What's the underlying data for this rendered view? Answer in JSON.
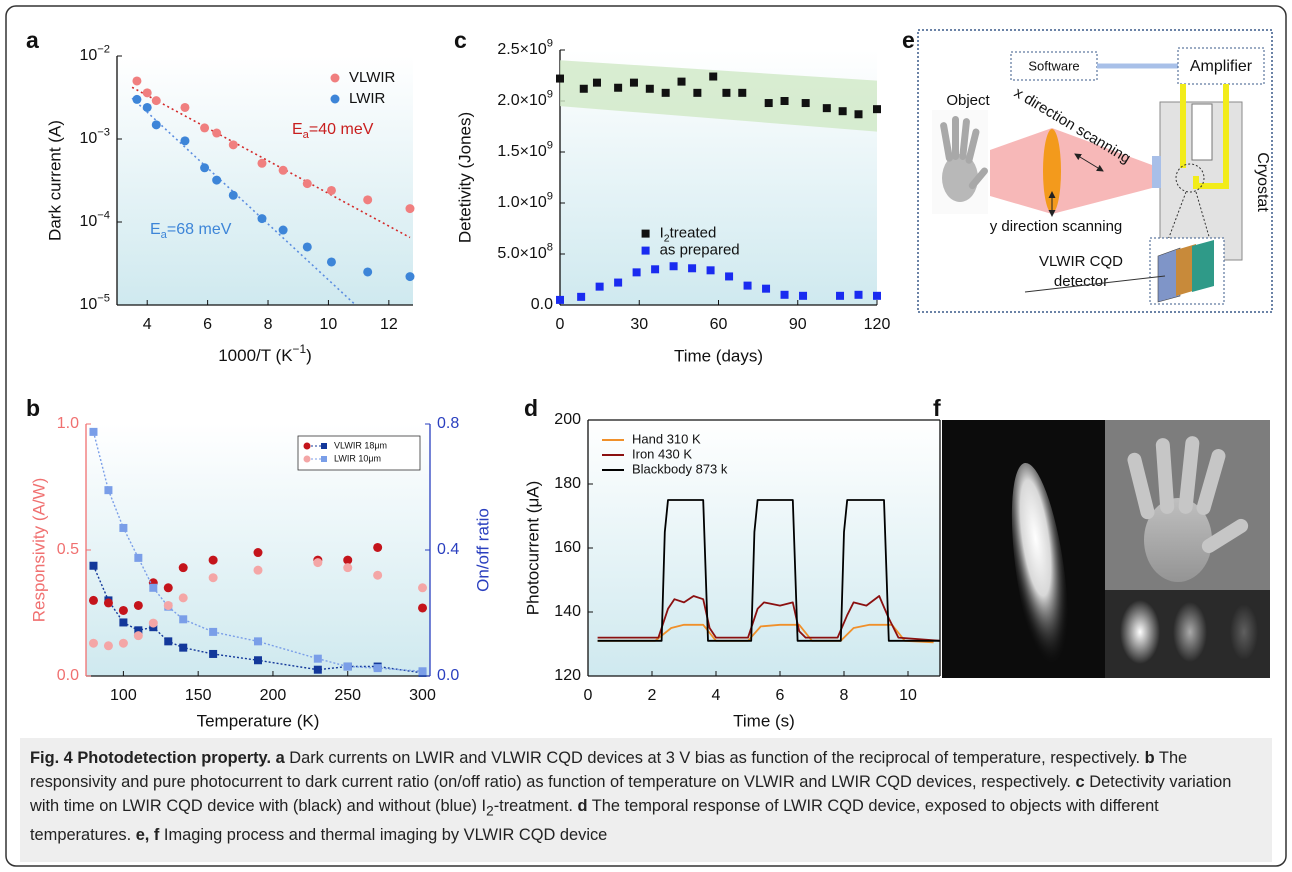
{
  "chart_data": [
    {
      "type": "scatter",
      "panel": "a",
      "yscale": "log",
      "legend": "upper right",
      "xlabel": [
        {
          "text": "1000/T  (K"
        },
        {
          "sup": "−1"
        },
        {
          "text": ")"
        }
      ],
      "ylabel": "Dark current  (A)",
      "xlim": [
        3,
        12.8
      ],
      "xticks": [
        4,
        6,
        8,
        10,
        12
      ],
      "ylim": [
        1e-05,
        0.01
      ],
      "yticks": [
        {
          "value": 1e-05,
          "label": [
            {
              "text": "10"
            },
            {
              "sup": "−5"
            }
          ]
        },
        {
          "value": 0.0001,
          "label": [
            {
              "text": "10"
            },
            {
              "sup": "−4"
            }
          ]
        },
        {
          "value": 0.001,
          "label": [
            {
              "text": "10"
            },
            {
              "sup": "−3"
            }
          ]
        },
        {
          "value": 0.01,
          "label": [
            {
              "text": "10"
            },
            {
              "sup": "−2"
            }
          ]
        }
      ],
      "x": [
        3.66,
        4.0,
        4.3,
        5.25,
        5.9,
        6.3,
        6.85,
        7.8,
        8.5,
        9.3,
        10.1,
        11.3,
        12.7
      ],
      "series": [
        {
          "name": "VLWIR",
          "color": "#f07f7f",
          "marker": "circle",
          "values": [
            0.005,
            0.0036,
            0.0029,
            0.0024,
            0.00136,
            0.00118,
            0.00085,
            0.00051,
            0.00042,
            0.00029,
            0.00024,
            0.000185,
            0.000145
          ],
          "fit": {
            "color": "#d42a2a",
            "x": [
              3.5,
              12.7
            ],
            "values": [
              0.0042,
              6.5e-05
            ]
          }
        },
        {
          "name": "LWIR",
          "color": "#3d85d8",
          "marker": "circle",
          "values": [
            0.003,
            0.0024,
            0.00148,
            0.00095,
            0.00045,
            0.00032,
            0.00021,
            0.00011,
            8e-05,
            5e-05,
            3.3e-05,
            2.5e-05,
            2.2e-05
          ],
          "fit": {
            "color": "#5b8de0",
            "x": [
              3.5,
              10.9
            ],
            "values": [
              0.0031,
              1e-05
            ]
          }
        }
      ],
      "annotations": [
        {
          "color": "#c81e1e",
          "text": [
            {
              "text": "E"
            },
            {
              "sub": "a"
            },
            {
              "text": "=40 meV"
            }
          ]
        },
        {
          "color": "#3d85d8",
          "text": [
            {
              "text": "E"
            },
            {
              "sub": "a"
            },
            {
              "text": "=68 meV"
            }
          ]
        }
      ]
    },
    {
      "type": "scatter",
      "panel": "b",
      "legend": "upper right",
      "xlabel": "Temperature (K)",
      "ylabel": "Responsivity (A/W)",
      "y2label": "On/off ratio",
      "y_color": "#f07070",
      "y2_color": "#2a3fbf",
      "xlim": [
        75,
        305
      ],
      "xticks": [
        100,
        150,
        200,
        250,
        300
      ],
      "ylim": [
        0,
        1.0
      ],
      "yticks": [
        {
          "value": 0,
          "label": "0.0"
        },
        0.5,
        {
          "value": 1,
          "label": "1.0"
        }
      ],
      "y2lim": [
        0,
        0.8
      ],
      "y2ticks": [
        {
          "value": 0,
          "label": "0.0"
        },
        0.4,
        0.8
      ],
      "x": [
        80,
        90,
        100,
        110,
        120,
        130,
        140,
        160,
        190,
        230,
        250,
        270,
        300
      ],
      "series": [
        {
          "name": "VLWIR 18μm",
          "color": "#c4141b",
          "marker": "circle",
          "values": [
            0.3,
            0.29,
            0.26,
            0.28,
            0.37,
            0.35,
            0.43,
            0.46,
            0.49,
            0.46,
            0.46,
            0.51,
            0.27
          ],
          "y2_color": "#13389a",
          "y2_values": [
            0.35,
            0.24,
            0.17,
            0.145,
            0.155,
            0.11,
            0.09,
            0.07,
            0.05,
            0.02,
            0.03,
            0.03,
            0.01
          ]
        },
        {
          "name": "LWIR 10μm",
          "color": "#f4a6a6",
          "marker": "circle",
          "values": [
            0.13,
            0.12,
            0.13,
            0.16,
            0.21,
            0.28,
            0.31,
            0.39,
            0.42,
            0.45,
            0.43,
            0.4,
            0.35
          ],
          "y2_color": "#7a9ee8",
          "y2_values": [
            0.775,
            0.59,
            0.47,
            0.375,
            0.28,
            0.22,
            0.18,
            0.14,
            0.11,
            0.055,
            0.03,
            0.025,
            0.015
          ]
        }
      ]
    },
    {
      "type": "scatter",
      "panel": "c",
      "legend": "center",
      "xlabel": "Time (days)",
      "ylabel": "Detetivity (Jones)",
      "xlim": [
        0,
        120
      ],
      "xticks": [
        0,
        30,
        60,
        90,
        120
      ],
      "ylim": [
        0,
        2500000000
      ],
      "yticks": [
        {
          "value": 0,
          "label": "0.0"
        },
        {
          "value": 500000000,
          "label": [
            {
              "text": "5.0×10"
            },
            {
              "sup": "8"
            }
          ]
        },
        {
          "value": 1000000000,
          "label": [
            {
              "text": "1.0×10"
            },
            {
              "sup": "9"
            }
          ]
        },
        {
          "value": 1500000000,
          "label": [
            {
              "text": "1.5×10"
            },
            {
              "sup": "9"
            }
          ]
        },
        {
          "value": 2000000000,
          "label": [
            {
              "text": "2.0×10"
            },
            {
              "sup": "9"
            }
          ]
        },
        {
          "value": 2500000000,
          "label": [
            {
              "text": "2.5×10"
            },
            {
              "sup": "9"
            }
          ]
        }
      ],
      "band": {
        "color": "#cfe8c6",
        "x": [
          0,
          120
        ],
        "upper": [
          2400000000,
          2200000000
        ],
        "lower": [
          1950000000,
          1700000000
        ]
      },
      "series": [
        {
          "name": [
            {
              "text": "I"
            },
            {
              "sub": "2"
            },
            {
              "text": "treated"
            }
          ],
          "color": "#111111",
          "marker": "square",
          "x": [
            0,
            9,
            14,
            22,
            28,
            34,
            40,
            46,
            52,
            58,
            63,
            69,
            79,
            85,
            93,
            101,
            107,
            113,
            120
          ],
          "values": [
            2220000000,
            2120000000,
            2180000000,
            2130000000,
            2180000000,
            2120000000,
            2080000000,
            2190000000,
            2080000000,
            2240000000,
            2080000000,
            2080000000,
            1980000000,
            2000000000,
            1980000000,
            1930000000,
            1900000000,
            1870000000,
            1920000000
          ]
        },
        {
          "name": "as prepared",
          "color": "#1a2bf0",
          "marker": "square",
          "x": [
            0,
            8,
            15,
            22,
            29,
            36,
            43,
            50,
            57,
            64,
            71,
            78,
            85,
            92,
            106,
            113,
            120
          ],
          "values": [
            50000000,
            80000000,
            180000000,
            220000000,
            320000000,
            350000000,
            380000000,
            360000000,
            340000000,
            280000000,
            190000000,
            160000000,
            100000000,
            90000000,
            90000000,
            100000000,
            90000000
          ]
        }
      ]
    },
    {
      "type": "line",
      "panel": "d",
      "legend": "upper left",
      "frame": true,
      "xlabel": "Time (s)",
      "ylabel": "Photocurrent (μA)",
      "xlim": [
        0,
        11
      ],
      "xticks": [
        0,
        2,
        4,
        6,
        8,
        10
      ],
      "ylim": [
        120,
        200
      ],
      "yticks": [
        120,
        140,
        160,
        180,
        200
      ],
      "series": [
        {
          "name": "Hand 310 K",
          "color": "#f0902a",
          "x": [
            0.3,
            2.1,
            2.6,
            3.0,
            3.6,
            4.0,
            5.0,
            5.4,
            6.0,
            6.6,
            7.0,
            7.9,
            8.3,
            8.8,
            9.5,
            9.9,
            10.8
          ],
          "values": [
            131,
            131,
            135,
            136,
            136,
            131,
            131,
            135.5,
            136,
            136,
            131,
            131,
            135,
            136,
            136,
            131,
            130.5
          ]
        },
        {
          "name": "Iron 430 K",
          "color": "#8b1010",
          "x": [
            0.3,
            2.2,
            2.5,
            2.7,
            3.0,
            3.3,
            3.6,
            3.8,
            4.0,
            5.0,
            5.3,
            5.5,
            6.0,
            6.4,
            6.6,
            6.8,
            7.8,
            8.1,
            8.3,
            8.7,
            9.1,
            9.4,
            9.7,
            11
          ],
          "values": [
            132,
            132,
            141,
            144,
            143,
            145,
            144,
            135,
            132,
            132,
            141,
            143,
            142,
            143,
            134,
            132,
            132,
            139,
            143,
            142,
            145,
            138,
            132,
            131
          ]
        },
        {
          "name": "Blackbody 873 k",
          "color": "#000000",
          "x": [
            0.3,
            2.3,
            2.4,
            2.5,
            3.6,
            3.75,
            5.1,
            5.2,
            5.3,
            6.4,
            6.55,
            7.9,
            8.0,
            8.1,
            9.25,
            9.4,
            11
          ],
          "values": [
            131,
            131,
            165,
            175,
            175,
            131,
            131,
            165,
            175,
            175,
            131,
            131,
            165,
            175,
            175,
            131,
            131
          ]
        }
      ]
    }
  ],
  "diagram": {
    "panel": "e",
    "software": "Software",
    "amplifier": "Amplifier",
    "object": "Object",
    "x_scan": "x direction scanning",
    "y_scan": "y direction scanning",
    "cryostat": "Cryostat",
    "detector_line1": "VLWIR CQD",
    "detector_line2": "detector"
  },
  "image_panel": {
    "panel": "f"
  },
  "caption": [
    {
      "bold": "Fig. 4 Photodetection property."
    },
    {
      "bold": " a"
    },
    {
      "text": " Dark currents on LWIR and VLWIR CQD devices at 3 V bias as function of the reciprocal of temperature, respectively. "
    },
    {
      "bold": "b"
    },
    {
      "text": " The responsivity and pure photocurrent to dark current ratio (on/off ratio) as function of temperature on VLWIR and LWIR CQD devices, respectively. "
    },
    {
      "bold": "c"
    },
    {
      "text": " Detectivity variation with time on LWIR CQD device with (black) and without (blue) I"
    },
    {
      "sub": "2"
    },
    {
      "text": "-treatment. "
    },
    {
      "bold": "d"
    },
    {
      "text": " The temporal response of LWIR CQD device, exposed to objects with different temperatures. "
    },
    {
      "bold": "e, f"
    },
    {
      "text": " Imaging process and thermal imaging by VLWIR CQD device"
    }
  ]
}
